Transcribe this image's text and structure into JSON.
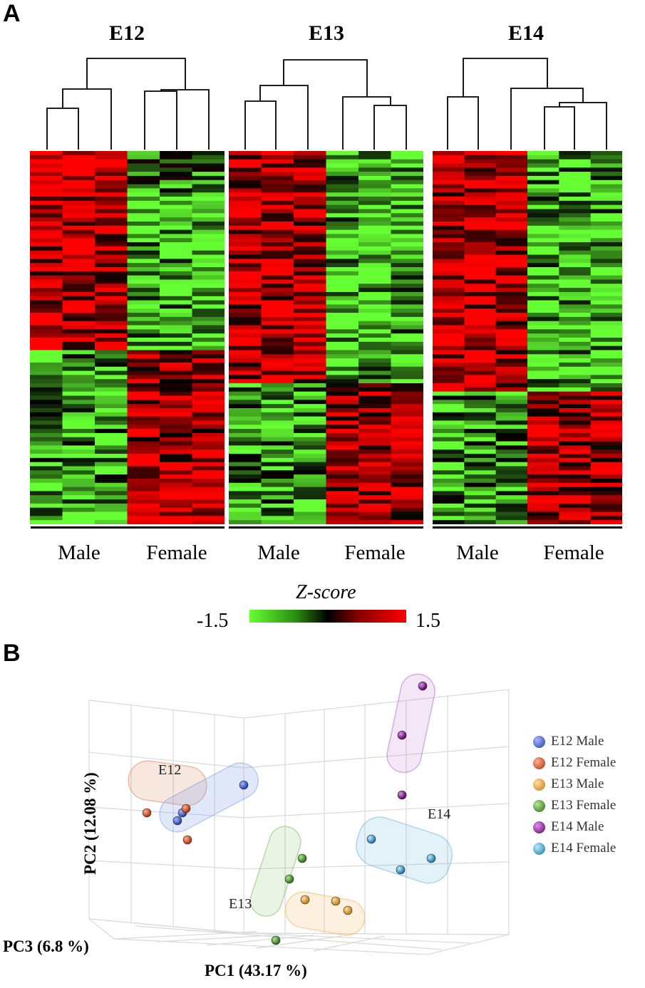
{
  "panel_a": {
    "letter": "A",
    "heatmaps": [
      {
        "title": "E12",
        "groups": [
          "Male",
          "Female"
        ]
      },
      {
        "title": "E13",
        "groups": [
          "Male",
          "Female"
        ]
      },
      {
        "title": "E14",
        "groups": [
          "Male",
          "Female"
        ]
      }
    ],
    "colorbar": {
      "title": "Z-score",
      "min_label": "-1.5",
      "max_label": "1.5",
      "low_color": "#66ff33",
      "mid_color": "#000000",
      "high_color": "#ff0000"
    }
  },
  "panel_b": {
    "letter": "B",
    "axes": {
      "pc1": "PC1 (43.17 %)",
      "pc2": "PC2 (12.08 %)",
      "pc3": "PC3 (6.8 %)"
    },
    "cluster_labels": {
      "e12": "E12",
      "e13": "E13",
      "e14": "E14"
    },
    "legend": [
      {
        "label": "E12 Male",
        "color": "#3a5fcd"
      },
      {
        "label": "E12 Female",
        "color": "#d2461e"
      },
      {
        "label": "E13 Male",
        "color": "#f0a030"
      },
      {
        "label": "E13 Female",
        "color": "#4a9a2a"
      },
      {
        "label": "E14 Male",
        "color": "#800080"
      },
      {
        "label": "E14 Female",
        "color": "#3399cc"
      }
    ]
  }
}
